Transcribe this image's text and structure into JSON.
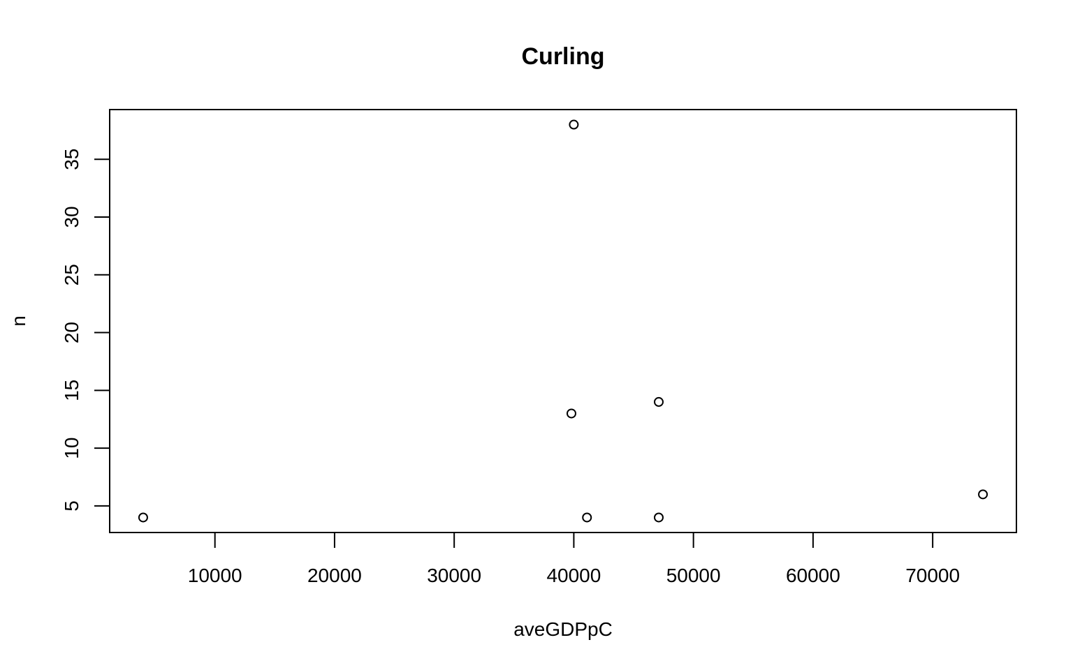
{
  "chart_data": {
    "type": "scatter",
    "title": "Curling",
    "xlabel": "aveGDPpC",
    "ylabel": "n",
    "xlim": [
      1200,
      77000
    ],
    "ylim": [
      2.7,
      39.3
    ],
    "x_ticks": [
      10000,
      20000,
      30000,
      40000,
      50000,
      60000,
      70000
    ],
    "y_ticks": [
      5,
      10,
      15,
      20,
      25,
      30,
      35
    ],
    "grid": false,
    "legend": "none",
    "points": [
      {
        "x": 4000,
        "y": 4
      },
      {
        "x": 40000,
        "y": 38
      },
      {
        "x": 39800,
        "y": 13
      },
      {
        "x": 47100,
        "y": 14
      },
      {
        "x": 41100,
        "y": 4
      },
      {
        "x": 47100,
        "y": 4
      },
      {
        "x": 74200,
        "y": 6
      }
    ]
  }
}
